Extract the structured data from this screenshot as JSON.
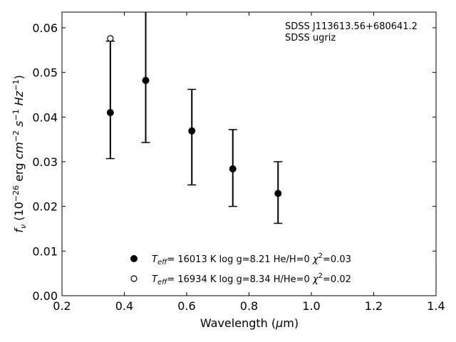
{
  "chart_data": {
    "type": "scatter",
    "xlabel": "Wavelength (μm)",
    "ylabel": "f_ν (10^-26 erg cm^-2 s^-1 Hz^-1)",
    "xlim": [
      0.2,
      1.4
    ],
    "ylim": [
      0.0,
      0.0635
    ],
    "x_ticks": [
      "0.2",
      "0.4",
      "0.6",
      "0.8",
      "1.0",
      "1.2",
      "1.4"
    ],
    "y_ticks": [
      "0.00",
      "0.01",
      "0.02",
      "0.03",
      "0.04",
      "0.05",
      "0.06"
    ],
    "grid": false,
    "legend_placement": "bottom-center",
    "annotation": [
      "SDSS J113613.56+680641.2",
      "SDSS ugriz"
    ],
    "series": [
      {
        "name": "T_eff= 16013 K  log g=8.21  He/H=0  χ²=0.03",
        "marker": "filled-circle",
        "x": [
          0.3551,
          0.4686,
          0.6166,
          0.748,
          0.8932
        ],
        "y": [
          0.041,
          0.0482,
          0.0369,
          0.0284,
          0.0229
        ],
        "yerr_low": [
          0.0307,
          0.0343,
          0.0248,
          0.02,
          0.0162
        ],
        "yerr_high": [
          0.057,
          0.0635,
          0.0462,
          0.0372,
          0.03
        ]
      },
      {
        "name": "T_eff= 16934 K  log g=8.34  H/He=0  χ²=0.02",
        "marker": "open-circle",
        "x": [
          0.3551
        ],
        "y": [
          0.0576
        ]
      }
    ],
    "legend": [
      {
        "temp": "16013",
        "logg": "8.21",
        "comp": "He/H=0",
        "chi2": "0.03"
      },
      {
        "temp": "16934",
        "logg": "8.34",
        "comp": "H/He=0",
        "chi2": "0.02"
      }
    ],
    "colors": {
      "marker": "#000000",
      "axes": "#000000",
      "background": "#ffffff"
    }
  }
}
